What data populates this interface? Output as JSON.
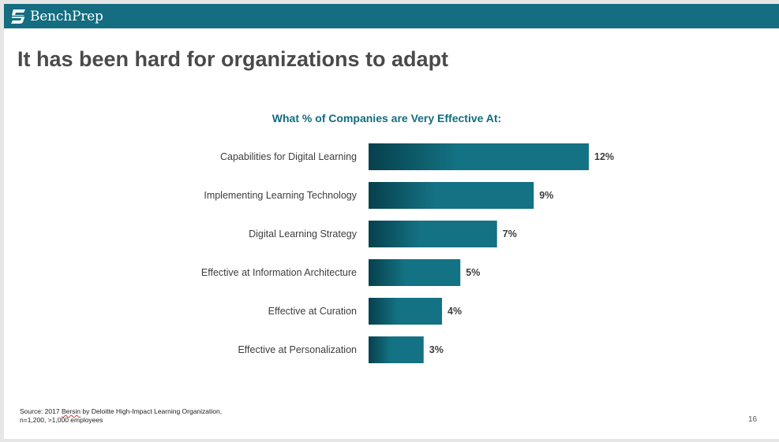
{
  "header": {
    "brand": "BenchPrep",
    "logo_icon": "benchprep-logo-icon",
    "bar_color": "#146d80"
  },
  "slide": {
    "title": "It has been hard for organizations to adapt",
    "page_number": "16"
  },
  "footnote": {
    "prefix": "Source: 2017 ",
    "misspelled": "Bersin",
    "suffix": " by Deloitte High-Impact Learning Organization,",
    "line2": "n=1,200, >1,000 employees"
  },
  "chart_data": {
    "type": "bar",
    "orientation": "horizontal",
    "title": "What % of Companies are Very Effective At:",
    "categories": [
      "Capabilities for Digital Learning",
      "Implementing Learning Technology",
      "Digital Learning Strategy",
      "Effective at Information Architecture",
      "Effective at Curation",
      "Effective at Personalization"
    ],
    "values": [
      12,
      9,
      7,
      5,
      4,
      3
    ],
    "value_labels": [
      "12%",
      "9%",
      "7%",
      "5%",
      "4%",
      "3%"
    ],
    "unit": "%",
    "xlim": [
      0,
      12
    ],
    "grid": false,
    "legend": "none",
    "bar_color_dark": "#07404d",
    "bar_color": "#137283"
  }
}
